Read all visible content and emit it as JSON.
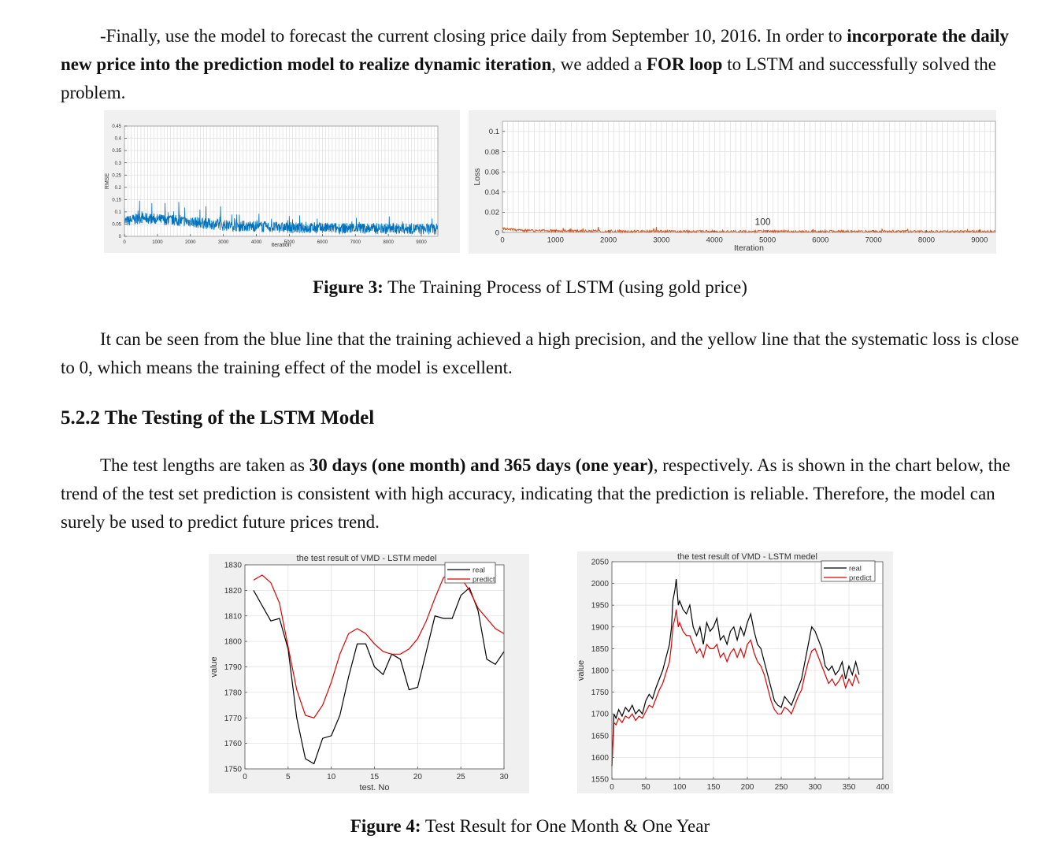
{
  "paragraph1": {
    "s1": "-Finally, use the model to forecast the current closing price daily from September 10, 2016. In order to ",
    "b1": "incorporate the daily new price into the prediction model to realize dynamic iteration",
    "s2": ", we added a ",
    "b2": "FOR loop",
    "s3": " to LSTM and successfully solved the problem."
  },
  "figure3": {
    "label": "Figure 3:",
    "text": " The Training Process of LSTM (using gold price)"
  },
  "paragraph2": "It can be seen from the blue line that the training achieved a high precision, and the yellow line that the systematic loss is close to 0, which means the training effect of the model is excellent.",
  "section_heading": "5.2.2 The Testing of the LSTM Model",
  "paragraph3": {
    "s1": "The test lengths are taken as ",
    "b1": "30 days (one month) and 365 days (one year)",
    "s2": ", respectively. As is shown in the chart below, the trend of the test set prediction is consistent with high accuracy, indicating that the prediction is reliable. Therefore, the model can surely be used to predict future prices trend."
  },
  "figure4": {
    "label": "Figure 4:",
    "text": " Test Result for One Month & One Year"
  },
  "colors": {
    "rmse": "#0072bd",
    "loss": "#d95319",
    "real": "#000000",
    "predict": "#e00000",
    "panel": "#f0f0f0"
  },
  "chart_data": [
    {
      "type": "line",
      "ylabel": "RMSE",
      "xlabel": "Iteration",
      "xlim": [
        0,
        9500
      ],
      "ylim": [
        0,
        0.45
      ],
      "xticks": [
        0,
        1000,
        2000,
        3000,
        4000,
        5000,
        6000,
        7000,
        8000,
        9000
      ],
      "yticks": [
        0,
        0.05,
        0.1,
        0.15,
        0.2,
        0.25,
        0.3,
        0.35,
        0.4,
        0.45
      ],
      "xtick_labels": [
        "0",
        "1000",
        "2000",
        "3000",
        "4000",
        "5000",
        "6000",
        "7000",
        "8000",
        "9000"
      ],
      "ytick_labels": [
        "0",
        "0.05",
        "0.1",
        "0.15",
        "0.2",
        "0.25",
        "0.3",
        "0.35",
        "0.4",
        "0.45"
      ],
      "grid": true,
      "series": [
        {
          "x": [
            0,
            500,
            1000,
            2000,
            3000,
            5000,
            9500
          ],
          "values": [
            0.06,
            0.075,
            0.07,
            0.06,
            0.045,
            0.035,
            0.03
          ]
        }
      ]
    },
    {
      "type": "line",
      "ylabel": "Loss",
      "xlabel": "Iteration",
      "annotation": "100",
      "xlim": [
        0,
        9300
      ],
      "ylim": [
        0,
        0.11
      ],
      "xticks": [
        0,
        1000,
        2000,
        3000,
        4000,
        5000,
        6000,
        7000,
        8000,
        9000
      ],
      "yticks": [
        0,
        0.02,
        0.04,
        0.06,
        0.08,
        0.1
      ],
      "xtick_labels": [
        "0",
        "1000",
        "2000",
        "3000",
        "4000",
        "5000",
        "6000",
        "7000",
        "8000",
        "9000"
      ],
      "ytick_labels": [
        "0",
        "0.02",
        "0.04",
        "0.06",
        "0.08",
        "0.1"
      ],
      "grid": true,
      "series": [
        {
          "x": [
            0,
            300,
            1000,
            2000,
            9300
          ],
          "values": [
            0.004,
            0.002,
            0.0015,
            0.001,
            0.0008
          ]
        }
      ]
    },
    {
      "type": "line",
      "title": "the test result of VMD - LSTM medel",
      "xlabel": "test. No",
      "ylabel": "value",
      "xlim": [
        0,
        30
      ],
      "ylim": [
        1750,
        1830
      ],
      "xticks": [
        0,
        5,
        10,
        15,
        20,
        25,
        30
      ],
      "yticks": [
        1750,
        1760,
        1770,
        1780,
        1790,
        1800,
        1810,
        1820,
        1830
      ],
      "xtick_labels": [
        "0",
        "5",
        "10",
        "15",
        "20",
        "25",
        "30"
      ],
      "ytick_labels": [
        "1750",
        "1760",
        "1770",
        "1780",
        "1790",
        "1800",
        "1810",
        "1820",
        "1830"
      ],
      "grid": true,
      "legend": "top-right",
      "series": [
        {
          "name": "real",
          "x": [
            1,
            2,
            3,
            4,
            5,
            6,
            7,
            8,
            9,
            10,
            11,
            12,
            13,
            14,
            15,
            16,
            17,
            18,
            19,
            20,
            21,
            22,
            23,
            24,
            25,
            26,
            27,
            28,
            29,
            30
          ],
          "values": [
            1820,
            1814,
            1808,
            1809,
            1797,
            1770,
            1754,
            1752,
            1762,
            1763,
            1771,
            1786,
            1799,
            1799,
            1790,
            1787,
            1795,
            1793,
            1781,
            1782,
            1796,
            1810,
            1809,
            1809,
            1818,
            1821,
            1812,
            1793,
            1791,
            1796
          ]
        },
        {
          "name": "predict",
          "x": [
            1,
            2,
            3,
            4,
            5,
            6,
            7,
            8,
            9,
            10,
            11,
            12,
            13,
            14,
            15,
            16,
            17,
            18,
            19,
            20,
            21,
            22,
            23,
            24,
            25,
            26,
            27,
            28,
            29,
            30
          ],
          "values": [
            1824,
            1826,
            1823,
            1815,
            1798,
            1781,
            1771,
            1770,
            1775,
            1784,
            1795,
            1803,
            1805,
            1803,
            1799,
            1796,
            1795,
            1795,
            1797,
            1801,
            1808,
            1817,
            1825,
            1827,
            1825,
            1820,
            1813,
            1809,
            1805,
            1803
          ]
        }
      ]
    },
    {
      "type": "line",
      "title": "the test result of VMD - LSTM medel",
      "ylabel": "value",
      "xlim": [
        0,
        400
      ],
      "ylim": [
        1550,
        2050
      ],
      "xticks": [
        0,
        50,
        100,
        150,
        200,
        250,
        300,
        350,
        400
      ],
      "yticks": [
        1550,
        1600,
        1650,
        1700,
        1750,
        1800,
        1850,
        1900,
        1950,
        2000,
        2050
      ],
      "xtick_labels": [
        "0",
        "50",
        "100",
        "150",
        "200",
        "250",
        "300",
        "350",
        "400"
      ],
      "ytick_labels": [
        "1550",
        "1600",
        "1650",
        "1700",
        "1750",
        "1800",
        "1850",
        "1900",
        "1950",
        "2000",
        "2050"
      ],
      "grid": true,
      "legend": "top-right",
      "series": [
        {
          "name": "real",
          "x": [
            0,
            3,
            6,
            10,
            15,
            20,
            25,
            30,
            35,
            40,
            45,
            50,
            55,
            60,
            65,
            70,
            75,
            80,
            85,
            88,
            90,
            93,
            95,
            98,
            100,
            105,
            110,
            115,
            120,
            125,
            130,
            135,
            140,
            145,
            150,
            155,
            160,
            165,
            170,
            175,
            180,
            185,
            190,
            195,
            200,
            205,
            210,
            215,
            220,
            225,
            230,
            235,
            240,
            245,
            250,
            255,
            260,
            265,
            270,
            275,
            280,
            285,
            290,
            295,
            300,
            305,
            310,
            315,
            320,
            325,
            330,
            335,
            340,
            345,
            350,
            355,
            360,
            365
          ],
          "values": [
            1580,
            1700,
            1690,
            1710,
            1695,
            1715,
            1705,
            1720,
            1700,
            1710,
            1700,
            1730,
            1745,
            1735,
            1760,
            1780,
            1800,
            1830,
            1860,
            1900,
            1960,
            1985,
            2010,
            1950,
            1960,
            1940,
            1930,
            1950,
            1900,
            1880,
            1900,
            1860,
            1910,
            1890,
            1900,
            1920,
            1870,
            1880,
            1860,
            1890,
            1900,
            1870,
            1900,
            1880,
            1910,
            1930,
            1890,
            1860,
            1850,
            1820,
            1790,
            1760,
            1730,
            1720,
            1715,
            1740,
            1730,
            1720,
            1740,
            1760,
            1780,
            1820,
            1860,
            1900,
            1890,
            1870,
            1850,
            1810,
            1800,
            1810,
            1790,
            1800,
            1820,
            1780,
            1810,
            1790,
            1820,
            1790
          ]
        },
        {
          "name": "predict",
          "x": [
            0,
            3,
            6,
            10,
            15,
            20,
            25,
            30,
            35,
            40,
            45,
            50,
            55,
            60,
            65,
            70,
            75,
            80,
            85,
            88,
            90,
            93,
            95,
            98,
            100,
            105,
            110,
            115,
            120,
            125,
            130,
            135,
            140,
            145,
            150,
            155,
            160,
            165,
            170,
            175,
            180,
            185,
            190,
            195,
            200,
            205,
            210,
            215,
            220,
            225,
            230,
            235,
            240,
            245,
            250,
            255,
            260,
            265,
            270,
            275,
            280,
            285,
            290,
            295,
            300,
            305,
            310,
            315,
            320,
            325,
            330,
            335,
            340,
            345,
            350,
            355,
            360,
            365
          ],
          "values": [
            1580,
            1680,
            1675,
            1690,
            1680,
            1695,
            1690,
            1700,
            1685,
            1695,
            1690,
            1705,
            1720,
            1715,
            1735,
            1755,
            1770,
            1795,
            1820,
            1860,
            1900,
            1920,
            1940,
            1900,
            1910,
            1890,
            1880,
            1880,
            1860,
            1840,
            1850,
            1830,
            1860,
            1850,
            1850,
            1860,
            1830,
            1840,
            1820,
            1840,
            1850,
            1830,
            1850,
            1830,
            1860,
            1870,
            1840,
            1820,
            1810,
            1790,
            1760,
            1730,
            1710,
            1700,
            1700,
            1715,
            1710,
            1700,
            1720,
            1740,
            1755,
            1790,
            1820,
            1845,
            1850,
            1830,
            1810,
            1790,
            1770,
            1780,
            1765,
            1775,
            1790,
            1760,
            1780,
            1765,
            1790,
            1770
          ]
        }
      ]
    }
  ]
}
